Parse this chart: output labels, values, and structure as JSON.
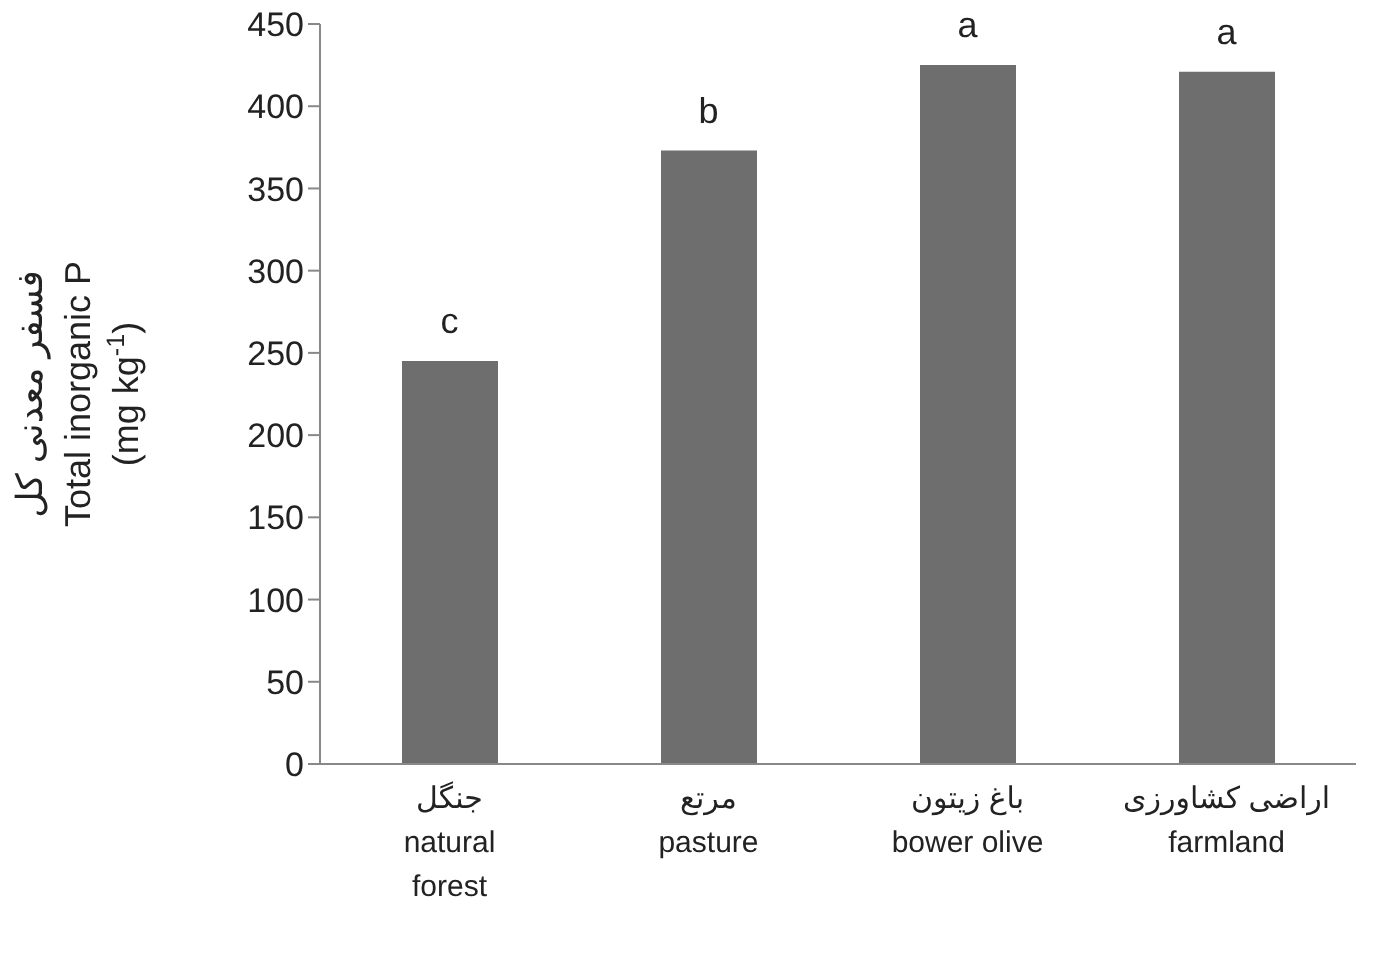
{
  "chart_data": {
    "type": "bar",
    "ylabel": "فسفر معدنی کل\nTotal inorganic P\n(mg kg$^{-1}$)",
    "categories": [
      "جنگل\nnatural\nforest",
      "مرتع\npasture",
      "باغ زیتون\nbower olive",
      "اراضی کشاورزی\nfarmland"
    ],
    "values": [
      245,
      373,
      425,
      421
    ],
    "color": "#6e6e6e",
    "ylim": [
      0,
      450
    ],
    "yticks": [
      0,
      50,
      100,
      150,
      200,
      250,
      300,
      350,
      400,
      450
    ],
    "grid": false,
    "legend": false,
    "annotations": [
      {
        "text": "c",
        "x": "جنگل\nnatural\nforest",
        "y": 245
      },
      {
        "text": "b",
        "x": "مرتع\npasture",
        "y": 373
      },
      {
        "text": "a",
        "x": "باغ زیتون\nbower olive",
        "y": 425
      },
      {
        "text": "a",
        "x": "اراضی کشاورزی\nfarmland",
        "y": 421
      }
    ]
  }
}
